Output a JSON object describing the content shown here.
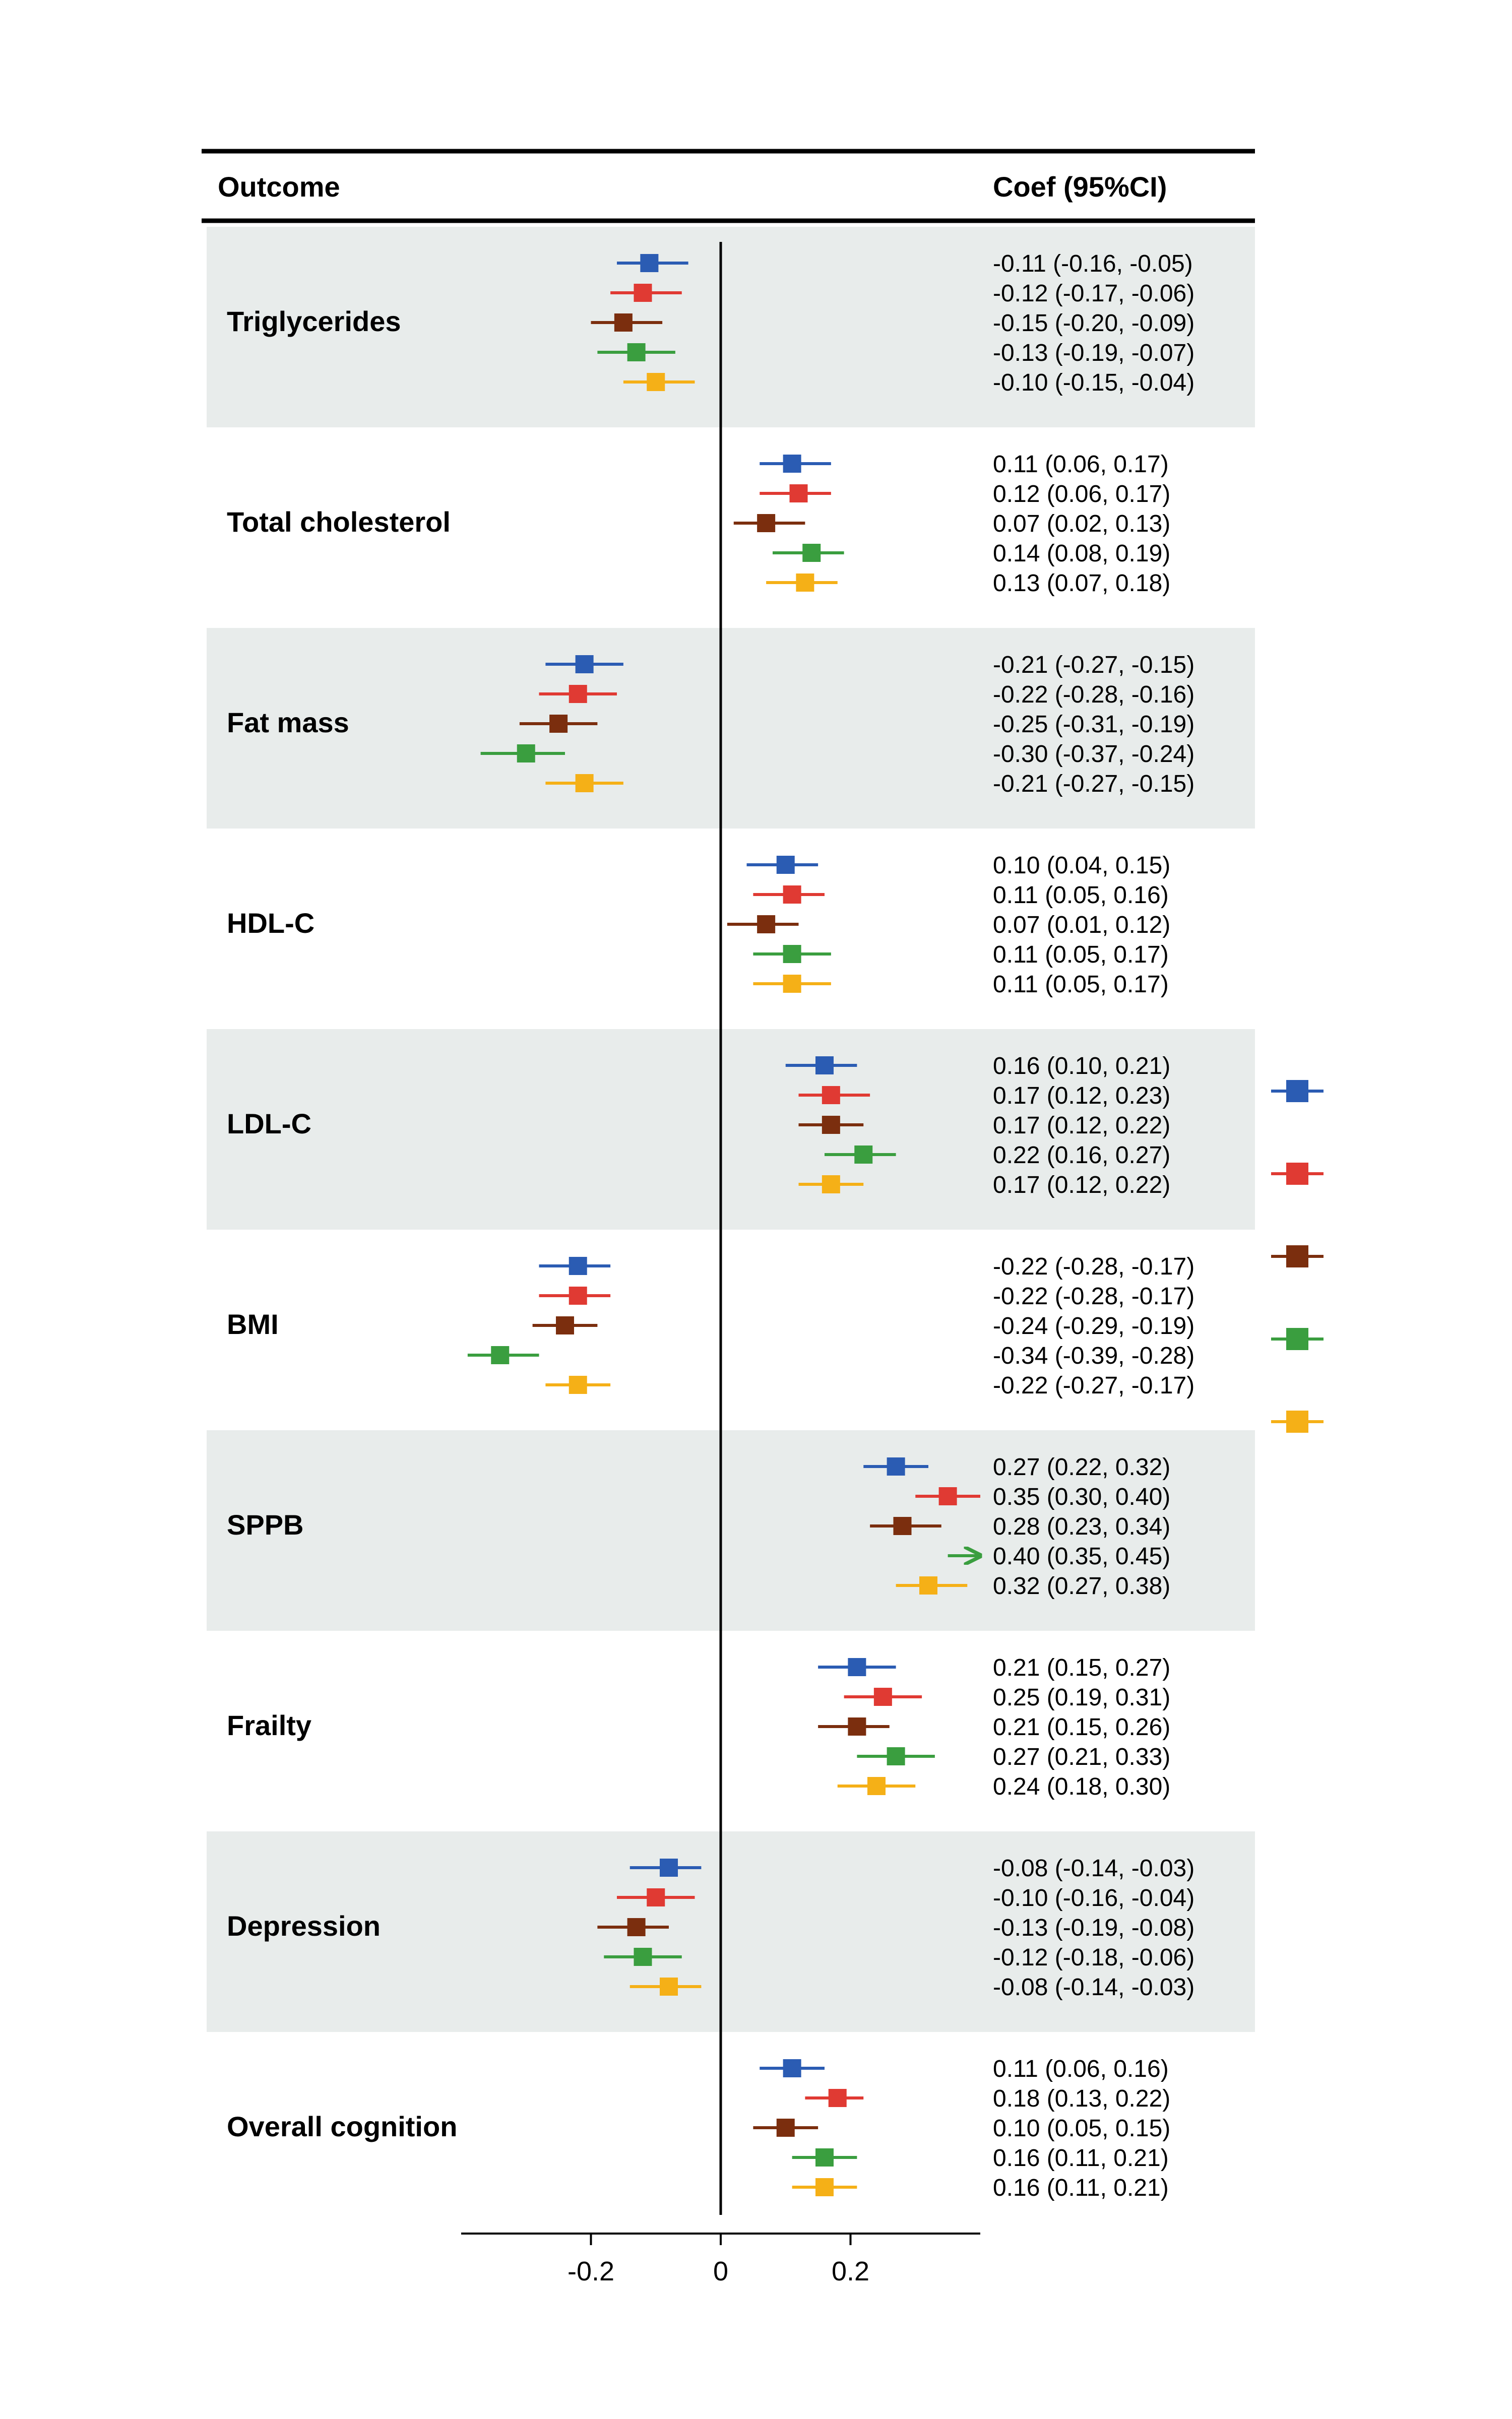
{
  "header": {
    "outcome_label": "Outcome",
    "coef_label": "Coef (95%CI)"
  },
  "chart_data": {
    "type": "forest",
    "xlim": [
      -0.4,
      0.4
    ],
    "xticks": [
      -0.2,
      0,
      0.2
    ],
    "xtick_labels": [
      "-0.2",
      "0",
      "0.2"
    ],
    "series_colors": [
      "#2b5cb3",
      "#e03a33",
      "#7b2e0e",
      "#3a9e3f",
      "#f5b017"
    ],
    "row_bands": [
      "#e8eceb",
      "#ffffff"
    ],
    "outcomes": [
      {
        "name": "Triglycerides",
        "estimates": [
          {
            "coef": -0.11,
            "lo": -0.16,
            "hi": -0.05,
            "text": "-0.11 (-0.16, -0.05)"
          },
          {
            "coef": -0.12,
            "lo": -0.17,
            "hi": -0.06,
            "text": "-0.12 (-0.17, -0.06)"
          },
          {
            "coef": -0.15,
            "lo": -0.2,
            "hi": -0.09,
            "text": "-0.15 (-0.20, -0.09)"
          },
          {
            "coef": -0.13,
            "lo": -0.19,
            "hi": -0.07,
            "text": "-0.13 (-0.19, -0.07)"
          },
          {
            "coef": -0.1,
            "lo": -0.15,
            "hi": -0.04,
            "text": "-0.10 (-0.15, -0.04)"
          }
        ]
      },
      {
        "name": "Total cholesterol",
        "estimates": [
          {
            "coef": 0.11,
            "lo": 0.06,
            "hi": 0.17,
            "text": "0.11 (0.06, 0.17)"
          },
          {
            "coef": 0.12,
            "lo": 0.06,
            "hi": 0.17,
            "text": "0.12 (0.06, 0.17)"
          },
          {
            "coef": 0.07,
            "lo": 0.02,
            "hi": 0.13,
            "text": "0.07 (0.02, 0.13)"
          },
          {
            "coef": 0.14,
            "lo": 0.08,
            "hi": 0.19,
            "text": "0.14 (0.08, 0.19)"
          },
          {
            "coef": 0.13,
            "lo": 0.07,
            "hi": 0.18,
            "text": "0.13 (0.07, 0.18)"
          }
        ]
      },
      {
        "name": "Fat mass",
        "estimates": [
          {
            "coef": -0.21,
            "lo": -0.27,
            "hi": -0.15,
            "text": "-0.21 (-0.27, -0.15)"
          },
          {
            "coef": -0.22,
            "lo": -0.28,
            "hi": -0.16,
            "text": "-0.22 (-0.28, -0.16)"
          },
          {
            "coef": -0.25,
            "lo": -0.31,
            "hi": -0.19,
            "text": "-0.25 (-0.31, -0.19)"
          },
          {
            "coef": -0.3,
            "lo": -0.37,
            "hi": -0.24,
            "text": "-0.30 (-0.37, -0.24)"
          },
          {
            "coef": -0.21,
            "lo": -0.27,
            "hi": -0.15,
            "text": "-0.21 (-0.27, -0.15)"
          }
        ]
      },
      {
        "name": "HDL-C",
        "estimates": [
          {
            "coef": 0.1,
            "lo": 0.04,
            "hi": 0.15,
            "text": "0.10 (0.04, 0.15)"
          },
          {
            "coef": 0.11,
            "lo": 0.05,
            "hi": 0.16,
            "text": "0.11 (0.05, 0.16)"
          },
          {
            "coef": 0.07,
            "lo": 0.01,
            "hi": 0.12,
            "text": "0.07 (0.01, 0.12)"
          },
          {
            "coef": 0.11,
            "lo": 0.05,
            "hi": 0.17,
            "text": "0.11 (0.05, 0.17)"
          },
          {
            "coef": 0.11,
            "lo": 0.05,
            "hi": 0.17,
            "text": "0.11 (0.05, 0.17)"
          }
        ]
      },
      {
        "name": "LDL-C",
        "estimates": [
          {
            "coef": 0.16,
            "lo": 0.1,
            "hi": 0.21,
            "text": "0.16 (0.10, 0.21)"
          },
          {
            "coef": 0.17,
            "lo": 0.12,
            "hi": 0.23,
            "text": "0.17 (0.12, 0.23)"
          },
          {
            "coef": 0.17,
            "lo": 0.12,
            "hi": 0.22,
            "text": "0.17 (0.12, 0.22)"
          },
          {
            "coef": 0.22,
            "lo": 0.16,
            "hi": 0.27,
            "text": "0.22 (0.16, 0.27)"
          },
          {
            "coef": 0.17,
            "lo": 0.12,
            "hi": 0.22,
            "text": "0.17 (0.12, 0.22)"
          }
        ]
      },
      {
        "name": "BMI",
        "estimates": [
          {
            "coef": -0.22,
            "lo": -0.28,
            "hi": -0.17,
            "text": "-0.22 (-0.28, -0.17)"
          },
          {
            "coef": -0.22,
            "lo": -0.28,
            "hi": -0.17,
            "text": "-0.22 (-0.28, -0.17)"
          },
          {
            "coef": -0.24,
            "lo": -0.29,
            "hi": -0.19,
            "text": "-0.24 (-0.29, -0.19)"
          },
          {
            "coef": -0.34,
            "lo": -0.39,
            "hi": -0.28,
            "text": "-0.34 (-0.39, -0.28)"
          },
          {
            "coef": -0.22,
            "lo": -0.27,
            "hi": -0.17,
            "text": "-0.22 (-0.27, -0.17)"
          }
        ]
      },
      {
        "name": "SPPB",
        "estimates": [
          {
            "coef": 0.27,
            "lo": 0.22,
            "hi": 0.32,
            "text": "0.27 (0.22, 0.32)"
          },
          {
            "coef": 0.35,
            "lo": 0.3,
            "hi": 0.4,
            "text": "0.35 (0.30, 0.40)"
          },
          {
            "coef": 0.28,
            "lo": 0.23,
            "hi": 0.34,
            "text": "0.28 (0.23, 0.34)"
          },
          {
            "coef": 0.4,
            "lo": 0.35,
            "hi": 0.45,
            "text": "0.40 (0.35, 0.45)"
          },
          {
            "coef": 0.32,
            "lo": 0.27,
            "hi": 0.38,
            "text": "0.32 (0.27, 0.38)"
          }
        ]
      },
      {
        "name": "Frailty",
        "estimates": [
          {
            "coef": 0.21,
            "lo": 0.15,
            "hi": 0.27,
            "text": "0.21 (0.15, 0.27)"
          },
          {
            "coef": 0.25,
            "lo": 0.19,
            "hi": 0.31,
            "text": "0.25 (0.19, 0.31)"
          },
          {
            "coef": 0.21,
            "lo": 0.15,
            "hi": 0.26,
            "text": "0.21 (0.15, 0.26)"
          },
          {
            "coef": 0.27,
            "lo": 0.21,
            "hi": 0.33,
            "text": "0.27 (0.21, 0.33)"
          },
          {
            "coef": 0.24,
            "lo": 0.18,
            "hi": 0.3,
            "text": "0.24 (0.18, 0.30)"
          }
        ]
      },
      {
        "name": "Depression",
        "estimates": [
          {
            "coef": -0.08,
            "lo": -0.14,
            "hi": -0.03,
            "text": "-0.08 (-0.14, -0.03)"
          },
          {
            "coef": -0.1,
            "lo": -0.16,
            "hi": -0.04,
            "text": "-0.10 (-0.16, -0.04)"
          },
          {
            "coef": -0.13,
            "lo": -0.19,
            "hi": -0.08,
            "text": "-0.13 (-0.19, -0.08)"
          },
          {
            "coef": -0.12,
            "lo": -0.18,
            "hi": -0.06,
            "text": "-0.12 (-0.18, -0.06)"
          },
          {
            "coef": -0.08,
            "lo": -0.14,
            "hi": -0.03,
            "text": "-0.08 (-0.14, -0.03)"
          }
        ]
      },
      {
        "name": "Overall cognition",
        "estimates": [
          {
            "coef": 0.11,
            "lo": 0.06,
            "hi": 0.16,
            "text": "0.11 (0.06, 0.16)"
          },
          {
            "coef": 0.18,
            "lo": 0.13,
            "hi": 0.22,
            "text": "0.18 (0.13, 0.22)"
          },
          {
            "coef": 0.1,
            "lo": 0.05,
            "hi": 0.15,
            "text": "0.10 (0.05, 0.15)"
          },
          {
            "coef": 0.16,
            "lo": 0.11,
            "hi": 0.21,
            "text": "0.16 (0.11, 0.21)"
          },
          {
            "coef": 0.16,
            "lo": 0.11,
            "hi": 0.21,
            "text": "0.16 (0.11, 0.21)"
          }
        ]
      }
    ]
  }
}
